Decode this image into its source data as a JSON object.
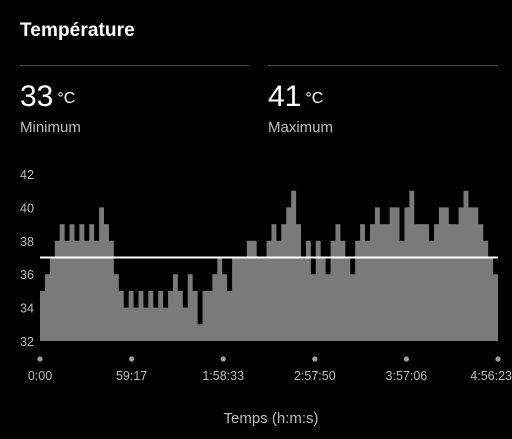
{
  "header": {
    "title": "Température"
  },
  "stats": {
    "min": {
      "value": "33",
      "unit": "°C",
      "label": "Minimum"
    },
    "max": {
      "value": "41",
      "unit": "°C",
      "label": "Maximum"
    }
  },
  "colors": {
    "background": "#000000",
    "area_fill": "#7a7a7a",
    "average_line": "#ffffff",
    "label_text": "#bdbdbd",
    "tick_dot": "#9e9e9e",
    "divider": "#4a4a4a"
  },
  "chart_data": {
    "type": "area",
    "title": "",
    "xlabel": "Temps (h:m:s)",
    "ylabel": "",
    "ylim": [
      32,
      42
    ],
    "yticks": [
      "42",
      "40",
      "38",
      "36",
      "34",
      "32"
    ],
    "xticks": [
      "0:00",
      "59:17",
      "1:58:33",
      "2:57:50",
      "3:57:06",
      "4:56:23"
    ],
    "x_range_seconds": [
      0,
      17783
    ],
    "average": 37,
    "series": [
      {
        "values": [
          35,
          36,
          37,
          38,
          39,
          38,
          39,
          38,
          39,
          38,
          39,
          38,
          40,
          39,
          38,
          36,
          35,
          34,
          35,
          34,
          35,
          34,
          35,
          34,
          35,
          34,
          35,
          36,
          35,
          34,
          36,
          35,
          33,
          35,
          35,
          36,
          37,
          36,
          35,
          37,
          37,
          37,
          38,
          38,
          37,
          37,
          38,
          39,
          38,
          39,
          40,
          41,
          39,
          37,
          38,
          36,
          38,
          37,
          36,
          38,
          39,
          38,
          37,
          36,
          38,
          39,
          38,
          39,
          40,
          39,
          39,
          40,
          40,
          38,
          40,
          41,
          39,
          39,
          39,
          38,
          39,
          40,
          40,
          39,
          39,
          40,
          41,
          40,
          40,
          39,
          38,
          37,
          36
        ]
      }
    ]
  }
}
